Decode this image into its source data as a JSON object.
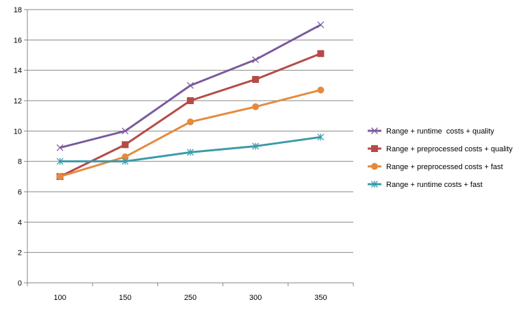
{
  "chart_data": {
    "type": "line",
    "categories": [
      "100",
      "150",
      "250",
      "300",
      "350"
    ],
    "ylim": [
      0,
      18
    ],
    "ytick_step": 2,
    "yticks": [
      "0",
      "2",
      "4",
      "6",
      "8",
      "10",
      "12",
      "14",
      "16",
      "18"
    ],
    "grid": true,
    "legend_position": "right",
    "series": [
      {
        "name": "Range + runtime  costs + quality",
        "values": [
          8.9,
          10.0,
          13.0,
          14.7,
          17.0
        ],
        "color": "#7a5a9c",
        "marker": "x"
      },
      {
        "name": "Range + preprocessed costs + quality",
        "values": [
          7.0,
          9.1,
          12.0,
          13.4,
          15.1
        ],
        "color": "#b54a47",
        "marker": "square"
      },
      {
        "name": "Range + preprocessed costs + fast",
        "values": [
          7.0,
          8.3,
          10.6,
          11.6,
          12.7
        ],
        "color": "#e58a3d",
        "marker": "circle"
      },
      {
        "name": "Range + runtime costs + fast",
        "values": [
          8.0,
          8.0,
          8.6,
          9.0,
          9.6
        ],
        "color": "#3c9aaa",
        "marker": "star"
      }
    ]
  }
}
